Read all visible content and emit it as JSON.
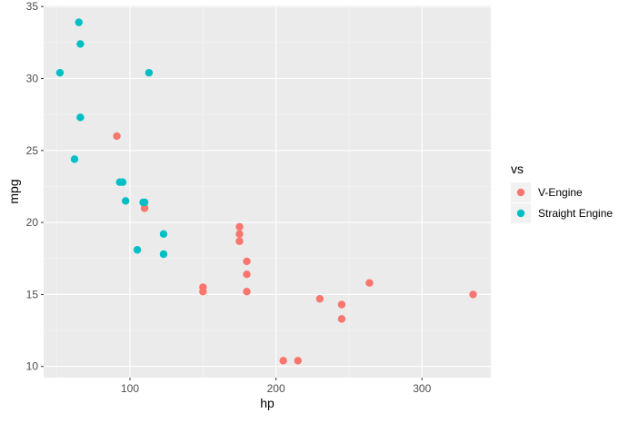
{
  "chart_data": {
    "type": "scatter",
    "title": "",
    "xlabel": "hp",
    "ylabel": "mpg",
    "xlim": [
      40.85,
      347.15
    ],
    "ylim": [
      9.225,
      35.075
    ],
    "x_ticks": [
      100,
      200,
      300
    ],
    "y_ticks": [
      10,
      15,
      20,
      25,
      30,
      35
    ],
    "grid": true,
    "legend": {
      "title": "vs",
      "placement": "right"
    },
    "series": [
      {
        "name": "V-Engine",
        "color": "#F8766D",
        "points": [
          {
            "x": 110,
            "y": 21.0
          },
          {
            "x": 110,
            "y": 21.0
          },
          {
            "x": 175,
            "y": 18.7
          },
          {
            "x": 245,
            "y": 14.3
          },
          {
            "x": 180,
            "y": 16.4
          },
          {
            "x": 180,
            "y": 17.3
          },
          {
            "x": 180,
            "y": 15.2
          },
          {
            "x": 205,
            "y": 10.4
          },
          {
            "x": 215,
            "y": 10.4
          },
          {
            "x": 230,
            "y": 14.7
          },
          {
            "x": 150,
            "y": 15.5
          },
          {
            "x": 150,
            "y": 15.2
          },
          {
            "x": 245,
            "y": 13.3
          },
          {
            "x": 175,
            "y": 19.2
          },
          {
            "x": 91,
            "y": 26.0
          },
          {
            "x": 264,
            "y": 15.8
          },
          {
            "x": 175,
            "y": 19.7
          },
          {
            "x": 335,
            "y": 15.0
          }
        ]
      },
      {
        "name": "Straight Engine",
        "color": "#00BFC4",
        "points": [
          {
            "x": 93,
            "y": 22.8
          },
          {
            "x": 110,
            "y": 21.4
          },
          {
            "x": 105,
            "y": 18.1
          },
          {
            "x": 62,
            "y": 24.4
          },
          {
            "x": 95,
            "y": 22.8
          },
          {
            "x": 123,
            "y": 19.2
          },
          {
            "x": 123,
            "y": 17.8
          },
          {
            "x": 66,
            "y": 32.4
          },
          {
            "x": 52,
            "y": 30.4
          },
          {
            "x": 65,
            "y": 33.9
          },
          {
            "x": 97,
            "y": 21.5
          },
          {
            "x": 66,
            "y": 27.3
          },
          {
            "x": 113,
            "y": 30.4
          },
          {
            "x": 109,
            "y": 21.4
          }
        ]
      }
    ]
  }
}
